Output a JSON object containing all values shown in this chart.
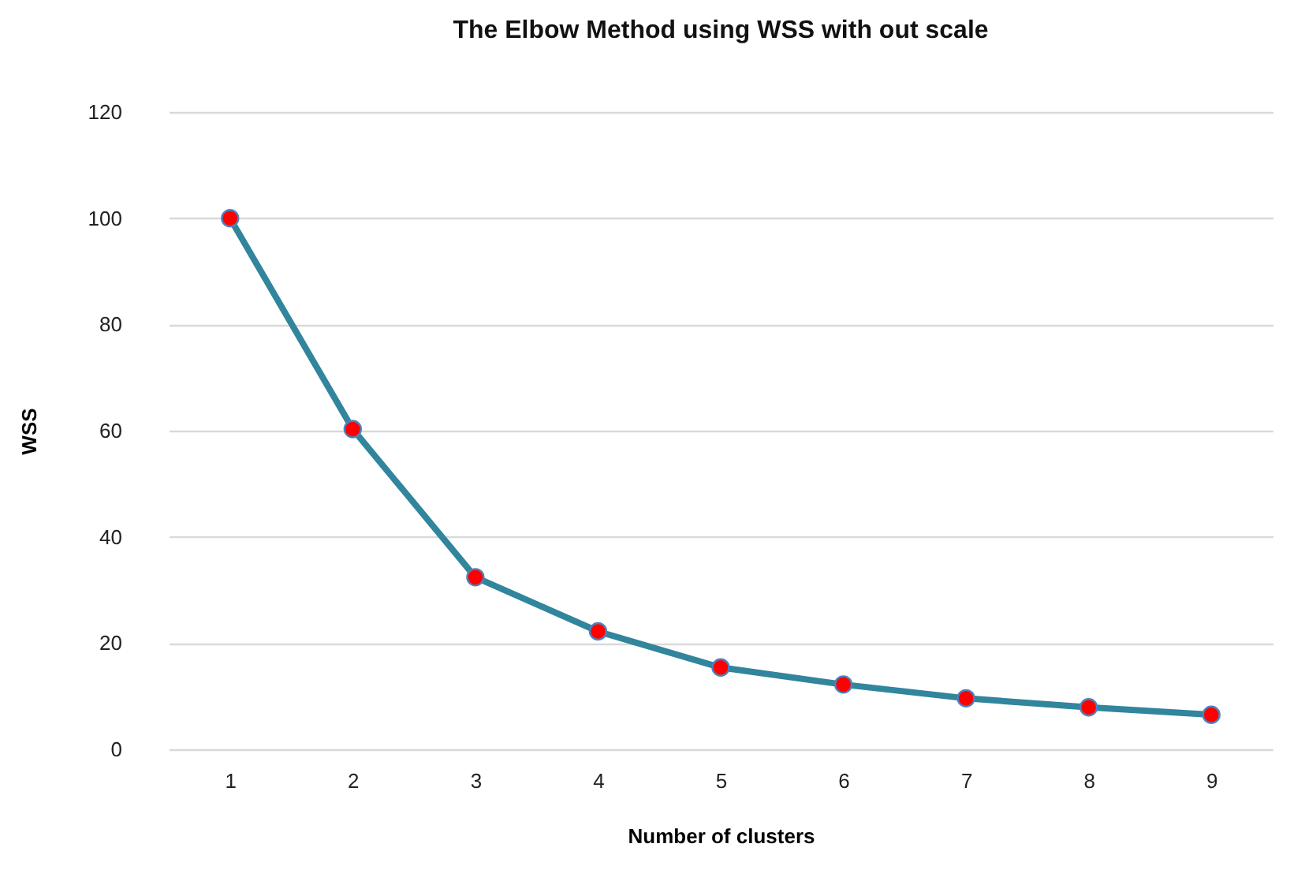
{
  "chart_data": {
    "type": "line",
    "title": "The Elbow Method using WSS with out scale",
    "xlabel": "Number of clusters",
    "ylabel": "WSS",
    "categories": [
      "1",
      "2",
      "3",
      "4",
      "5",
      "6",
      "7",
      "8",
      "9"
    ],
    "series": [
      {
        "color": "#31859c",
        "colors": [
          "#ff0000",
          "#ff0000",
          "#ff0000",
          "#ff0000",
          "#ff0000",
          "#ff0000",
          "#ff0000",
          "#ff0000",
          "#ff0000"
        ],
        "values": [
          100,
          60.3,
          32.4,
          22.2,
          15.4,
          12.2,
          9.6,
          7.9,
          6.5
        ]
      }
    ],
    "ylim": [
      0,
      120
    ],
    "yticks": [
      0,
      20,
      40,
      60,
      80,
      100,
      120
    ],
    "grid": "y",
    "marker": "circle",
    "line_style": "solid"
  }
}
